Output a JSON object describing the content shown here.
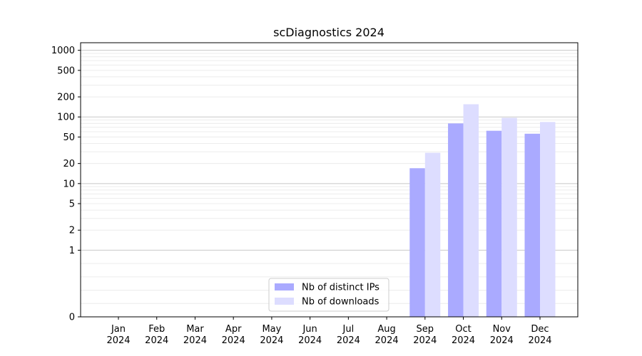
{
  "chart_data": {
    "type": "bar",
    "title": "scDiagnostics 2024",
    "xlabel": "",
    "ylabel": "",
    "y_scale": "symlog",
    "ylim": [
      0,
      1300
    ],
    "y_ticks": [
      0,
      1,
      2,
      5,
      10,
      20,
      50,
      100,
      200,
      500,
      1000
    ],
    "y_tick_labels": [
      "0",
      "1",
      "2",
      "5",
      "10",
      "20",
      "50",
      "100",
      "200",
      "500",
      "1000"
    ],
    "grid": "horizontal",
    "legend_position": "lower-center",
    "categories": [
      {
        "month": "Jan",
        "year": "2024"
      },
      {
        "month": "Feb",
        "year": "2024"
      },
      {
        "month": "Mar",
        "year": "2024"
      },
      {
        "month": "Apr",
        "year": "2024"
      },
      {
        "month": "May",
        "year": "2024"
      },
      {
        "month": "Jun",
        "year": "2024"
      },
      {
        "month": "Jul",
        "year": "2024"
      },
      {
        "month": "Aug",
        "year": "2024"
      },
      {
        "month": "Sep",
        "year": "2024"
      },
      {
        "month": "Oct",
        "year": "2024"
      },
      {
        "month": "Nov",
        "year": "2024"
      },
      {
        "month": "Dec",
        "year": "2024"
      }
    ],
    "series": [
      {
        "name": "Nb of distinct IPs",
        "color": "#aaaaff",
        "values": [
          0,
          0,
          0,
          0,
          0,
          0,
          0,
          0,
          17,
          80,
          62,
          56
        ]
      },
      {
        "name": "Nb of downloads",
        "color": "#ddddff",
        "values": [
          0,
          0,
          0,
          0,
          0,
          0,
          0,
          0,
          29,
          155,
          97,
          84
        ]
      }
    ]
  }
}
